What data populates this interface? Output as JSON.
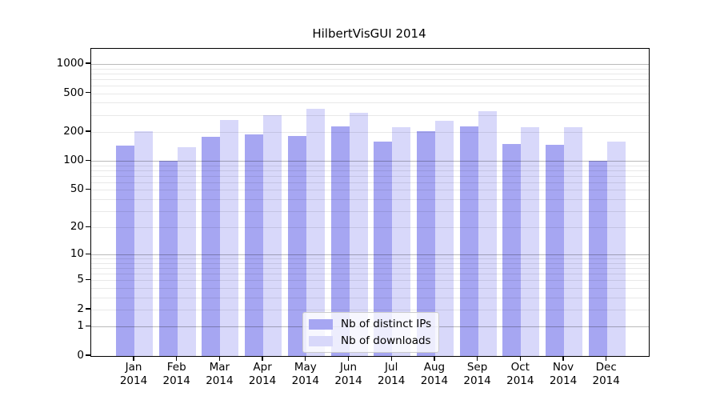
{
  "title": "HilbertVisGUI 2014",
  "chart_data": {
    "type": "bar",
    "title": "HilbertVisGUI 2014",
    "xlabel": "",
    "ylabel": "",
    "y_scale": "log10(value+1)",
    "ylim": [
      0,
      1440
    ],
    "grid": true,
    "legend_position": "lower center",
    "categories": [
      "Jan",
      "Feb",
      "Mar",
      "Apr",
      "May",
      "Jun",
      "Jul",
      "Aug",
      "Sep",
      "Oct",
      "Nov",
      "Dec"
    ],
    "year_label": "2014",
    "yticks": [
      0,
      1,
      2,
      5,
      10,
      20,
      50,
      100,
      200,
      500,
      1000
    ],
    "minor_gridlines": [
      2,
      3,
      4,
      5,
      6,
      7,
      8,
      9,
      20,
      30,
      40,
      50,
      60,
      70,
      80,
      90,
      200,
      300,
      400,
      500,
      600,
      700,
      800,
      900
    ],
    "major_gridlines": [
      1,
      10,
      100,
      1000
    ],
    "series": [
      {
        "name": "Nb of distinct IPs",
        "color": "#a6a6f2",
        "values": [
          145,
          101,
          178,
          188,
          181,
          229,
          160,
          202,
          229,
          150,
          148,
          100
        ]
      },
      {
        "name": "Nb of downloads",
        "color": "#d8d8fa",
        "values": [
          205,
          140,
          265,
          300,
          347,
          315,
          224,
          261,
          330,
          224,
          224,
          160
        ]
      }
    ],
    "colors": {
      "background": "#ffffff",
      "axis": "#000000",
      "major_grid": "#b9b9b9",
      "minor_grid": "#e9e9e9"
    }
  }
}
